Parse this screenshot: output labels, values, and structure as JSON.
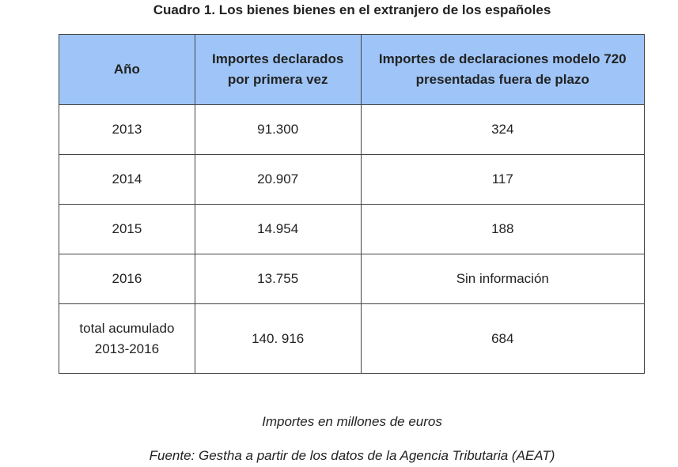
{
  "title": "Cuadro 1. Los bienes bienes en el extranjero de los españoles",
  "table": {
    "headers": [
      {
        "lines": [
          "Año"
        ]
      },
      {
        "lines": [
          "Importes declarados",
          "por primera vez"
        ]
      },
      {
        "lines": [
          "Importes de declaraciones modelo 720",
          "presentadas fuera de plazo"
        ]
      }
    ],
    "rows": [
      {
        "year": [
          "2013"
        ],
        "first_time": "91.300",
        "late": "324"
      },
      {
        "year": [
          "2014"
        ],
        "first_time": "20.907",
        "late": "117"
      },
      {
        "year": [
          "2015"
        ],
        "first_time": "14.954",
        "late": "188"
      },
      {
        "year": [
          "2016"
        ],
        "first_time": "13.755",
        "late": "Sin información"
      },
      {
        "year": [
          "total acumulado",
          "2013-2016"
        ],
        "first_time": "140. 916",
        "late": "684"
      }
    ]
  },
  "note": "Importes en millones de euros",
  "source": "Fuente: Gestha a partir de los datos de la Agencia Tributaria (AEAT)"
}
